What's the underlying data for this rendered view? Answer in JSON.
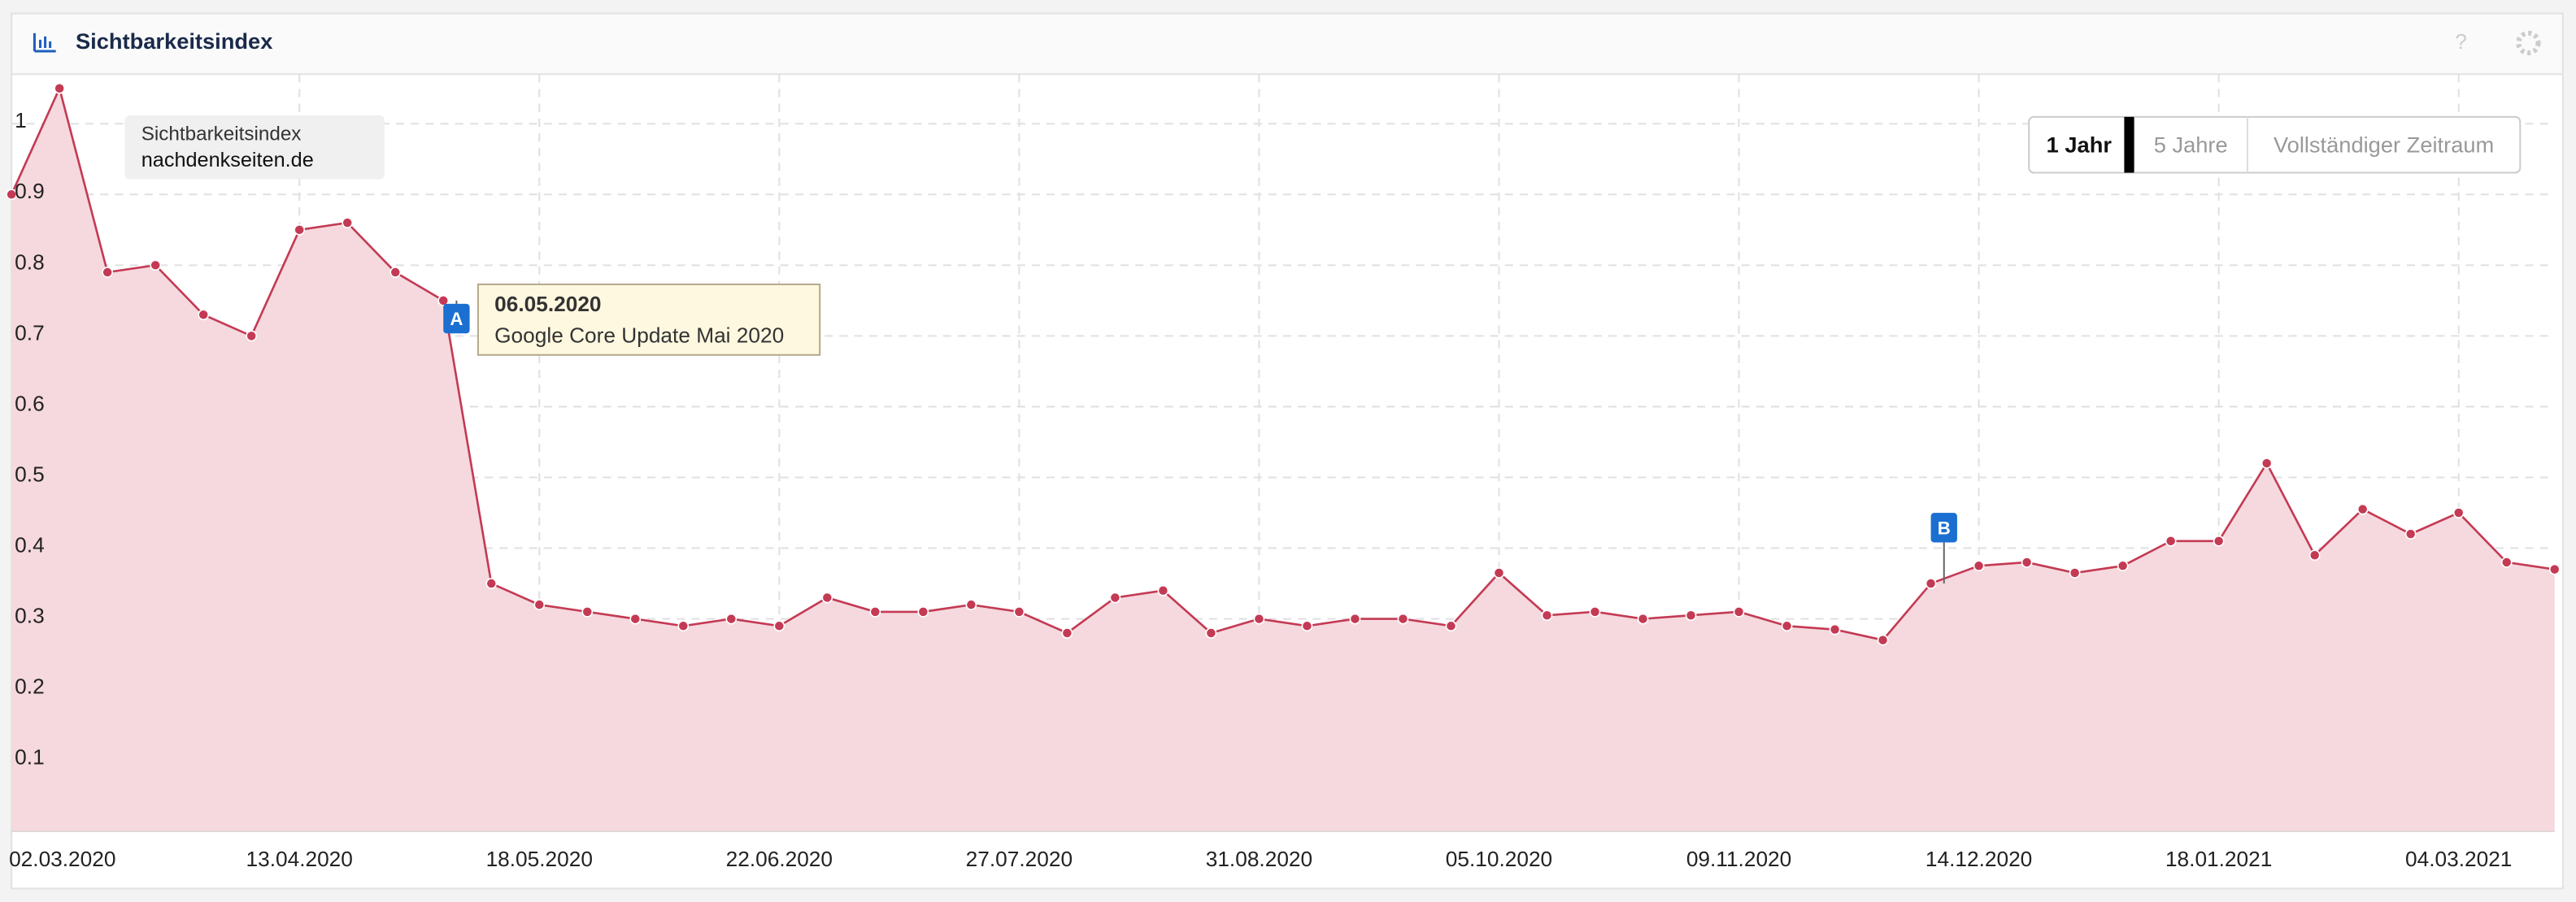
{
  "header": {
    "title": "Sichtbarkeitsindex",
    "help": "?"
  },
  "controls": [
    "1 Jahr",
    "5 Jahre",
    "Vollständiger Zeitraum"
  ],
  "chart_data": {
    "type": "area",
    "legend_title": "Sichtbarkeitsindex",
    "series": [
      {
        "name": "nachdenkseiten.de",
        "color": "#c43a54",
        "fill": "#f5d9de",
        "values": [
          0.9,
          1.05,
          0.79,
          0.8,
          0.73,
          0.7,
          0.85,
          0.86,
          0.79,
          0.75,
          0.35,
          0.32,
          0.31,
          0.3,
          0.29,
          0.3,
          0.29,
          0.33,
          0.31,
          0.31,
          0.32,
          0.31,
          0.28,
          0.33,
          0.34,
          0.28,
          0.3,
          0.29,
          0.3,
          0.3,
          0.29,
          0.365,
          0.305,
          0.31,
          0.3,
          0.305,
          0.31,
          0.29,
          0.285,
          0.27,
          0.35,
          0.375,
          0.38,
          0.365,
          0.375,
          0.41,
          0.41,
          0.52,
          0.39,
          0.455,
          0.42,
          0.45,
          0.38,
          0.37
        ]
      }
    ],
    "categories": [
      "02.03.2020",
      null,
      null,
      null,
      null,
      null,
      "13.04.2020",
      null,
      null,
      null,
      null,
      "18.05.2020",
      null,
      null,
      null,
      null,
      "22.06.2020",
      null,
      null,
      null,
      null,
      "27.07.2020",
      null,
      null,
      null,
      null,
      "31.08.2020",
      null,
      null,
      null,
      null,
      "05.10.2020",
      null,
      null,
      null,
      null,
      "09.11.2020",
      null,
      null,
      null,
      null,
      "14.12.2020",
      null,
      null,
      null,
      null,
      "18.01.2021",
      null,
      null,
      null,
      null,
      "04.03.2021",
      null,
      null
    ],
    "ylim": [
      0,
      1.07
    ],
    "yticks": [
      0.1,
      0.2,
      0.3,
      0.4,
      0.5,
      0.6,
      0.7,
      0.8,
      0.9,
      1
    ],
    "grid": true,
    "annotations": [
      {
        "marker": "A",
        "date": "06.05.2020",
        "text": "Google Core Update Mai 2020"
      },
      {
        "marker": "B"
      }
    ]
  }
}
